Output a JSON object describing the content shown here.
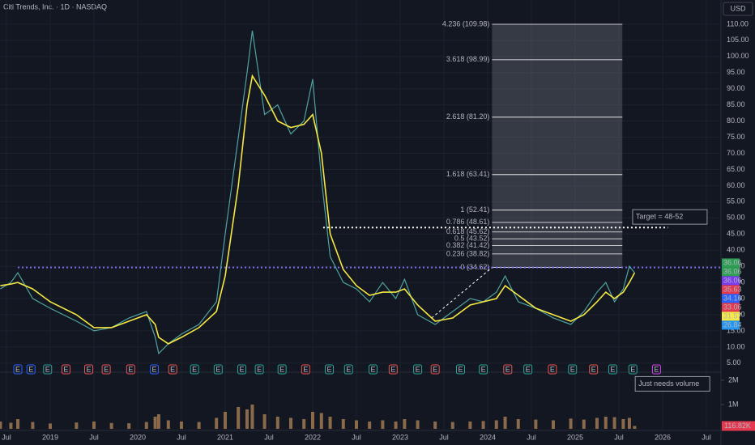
{
  "chart_data": {
    "type": "line",
    "title": "Citi Trends, Inc. · 1D · NASDAQ",
    "currency": "USD",
    "background": "#131722",
    "x": [
      2018.43,
      2018.55,
      2018.63,
      2018.8,
      2019.0,
      2019.3,
      2019.5,
      2019.7,
      2019.9,
      2020.1,
      2020.2,
      2020.24,
      2020.35,
      2020.5,
      2020.7,
      2020.9,
      2021.0,
      2021.15,
      2021.25,
      2021.31,
      2021.45,
      2021.6,
      2021.75,
      2021.9,
      2022.0,
      2022.1,
      2022.2,
      2022.35,
      2022.5,
      2022.65,
      2022.8,
      2022.95,
      2023.05,
      2023.2,
      2023.4,
      2023.6,
      2023.8,
      2023.95,
      2024.1,
      2024.2,
      2024.35,
      2024.55,
      2024.75,
      2024.95,
      2025.1,
      2025.25,
      2025.35,
      2025.45,
      2025.55,
      2025.62,
      2025.68
    ],
    "series": [
      {
        "color": "#4fa3a0",
        "values": [
          28,
          30,
          33,
          25,
          22,
          18,
          15,
          16,
          19,
          21,
          13,
          8,
          11,
          14,
          17,
          24,
          45,
          75,
          95,
          108,
          82,
          85,
          76,
          80,
          93,
          62,
          38,
          30,
          28,
          24,
          30,
          25,
          31,
          20,
          17,
          21,
          25,
          24,
          27,
          32,
          24,
          22,
          19,
          17,
          21,
          27,
          30,
          24,
          28,
          35,
          33
        ]
      },
      {
        "color": "#f5e942",
        "values": [
          29,
          29.5,
          30,
          28,
          24,
          20,
          16,
          16,
          18,
          20,
          17,
          13,
          11,
          13,
          16,
          21,
          32,
          60,
          85,
          94,
          88,
          80,
          78,
          79,
          82,
          70,
          45,
          34,
          29,
          26,
          27,
          27,
          28,
          23,
          18,
          19,
          23,
          24,
          25,
          29,
          26,
          22,
          20,
          18,
          20,
          24,
          27,
          25,
          27,
          30,
          33
        ]
      }
    ],
    "volume": {
      "color": "#8a6a4a",
      "values": [
        300000,
        250000,
        400000,
        280000,
        220000,
        260000,
        300000,
        240000,
        230000,
        280000,
        500000,
        600000,
        350000,
        300000,
        280000,
        450000,
        700000,
        900000,
        800000,
        1000000,
        600000,
        500000,
        450000,
        400000,
        700000,
        650000,
        500000,
        400000,
        350000,
        300000,
        350000,
        300000,
        400000,
        350000,
        300000,
        280000,
        300000,
        320000,
        350000,
        500000,
        400000,
        380000,
        350000,
        420000,
        380000,
        450000,
        500000,
        480000,
        400000,
        450000,
        116820
      ]
    },
    "volume_last_label": "116.82K",
    "volume_ylim": [
      0,
      2330000
    ],
    "volume_ticks": [
      {
        "value": 2000000,
        "label": "2M"
      },
      {
        "value": 1000000,
        "label": "1M"
      }
    ],
    "xlim": [
      2018.426,
      2026.667
    ],
    "xticks": [
      {
        "value": 2018.5,
        "label": "Jul"
      },
      {
        "value": 2019,
        "label": "2019"
      },
      {
        "value": 2019.5,
        "label": "Jul"
      },
      {
        "value": 2020,
        "label": "2020"
      },
      {
        "value": 2020.5,
        "label": "Jul"
      },
      {
        "value": 2021,
        "label": "2021"
      },
      {
        "value": 2021.5,
        "label": "Jul"
      },
      {
        "value": 2022,
        "label": "2022"
      },
      {
        "value": 2022.5,
        "label": "Jul"
      },
      {
        "value": 2023,
        "label": "2023"
      },
      {
        "value": 2023.5,
        "label": "Jul"
      },
      {
        "value": 2024,
        "label": "2024"
      },
      {
        "value": 2024.5,
        "label": "Jul"
      },
      {
        "value": 2025,
        "label": "2025"
      },
      {
        "value": 2025.5,
        "label": "Jul"
      },
      {
        "value": 2026,
        "label": "2026"
      },
      {
        "value": 2026.5,
        "label": "Jul"
      }
    ],
    "ylim": [
      2.2,
      117.5
    ],
    "yticks": [
      {
        "value": 5,
        "label": "5.00"
      },
      {
        "value": 10,
        "label": "10.00"
      },
      {
        "value": 15,
        "label": "15.00"
      },
      {
        "value": 20,
        "label": "20.00"
      },
      {
        "value": 25,
        "label": "25.00"
      },
      {
        "value": 30,
        "label": "30.00"
      },
      {
        "value": 35,
        "label": "35.00"
      },
      {
        "value": 40,
        "label": "40.00"
      },
      {
        "value": 45,
        "label": "45.00"
      },
      {
        "value": 50,
        "label": "50.00"
      },
      {
        "value": 55,
        "label": "55.00"
      },
      {
        "value": 60,
        "label": "60.00"
      },
      {
        "value": 65,
        "label": "65.00"
      },
      {
        "value": 70,
        "label": "70.00"
      },
      {
        "value": 75,
        "label": "75.00"
      },
      {
        "value": 80,
        "label": "80.00"
      },
      {
        "value": 85,
        "label": "85.00"
      },
      {
        "value": 90,
        "label": "90.00"
      },
      {
        "value": 95,
        "label": "95.00"
      },
      {
        "value": 100,
        "label": "100.00"
      },
      {
        "value": 105,
        "label": "105.00"
      },
      {
        "value": 110,
        "label": "110.00"
      }
    ],
    "grid": true,
    "fib": {
      "from": 2024.05,
      "to": 2025.54,
      "levels": [
        {
          "value": 109.98,
          "label": "4.236 (109.98)"
        },
        {
          "value": 98.99,
          "label": "3.618 (98.99)"
        },
        {
          "value": 81.2,
          "label": "2.618 (81.20)"
        },
        {
          "value": 63.41,
          "label": "1.618 (63.41)"
        },
        {
          "value": 52.41,
          "label": "1 (52.41)"
        },
        {
          "value": 48.61,
          "label": "0.786 (48.61)"
        },
        {
          "value": 45.62,
          "label": "0.618 (45.62)"
        },
        {
          "value": 43.52,
          "label": "0.5 (43.52)"
        },
        {
          "value": 41.42,
          "label": "0.382 (41.42)"
        },
        {
          "value": 38.82,
          "label": "0.236 (38.82)"
        },
        {
          "value": 34.62,
          "label": "0 (34.62)"
        }
      ]
    },
    "trend_line": {
      "x": [
        2023.36,
        2024.05
      ],
      "values": [
        19,
        34.62
      ]
    },
    "levels": [
      {
        "value": 47,
        "from": 2022.12,
        "to": 2026.06,
        "color": "#ffffff"
      },
      {
        "value": 34.62,
        "from": 2018.63,
        "to": 2026.667,
        "color": "#7b6cf0"
      }
    ],
    "annotations": [
      {
        "text": "Target = 48-52",
        "x": 2025.87,
        "value": 50.3
      },
      {
        "text": "Just needs volume",
        "x": 2025.9,
        "volume": 1850000
      }
    ],
    "price_tags": [
      {
        "value": 36.06,
        "color": "#2e9e55"
      },
      {
        "value": 36.06,
        "color": "#2e9e55"
      },
      {
        "value": 36.06,
        "color": "#7b3cf0"
      },
      {
        "value": 35.63,
        "color": "#e53950"
      },
      {
        "value": 34.16,
        "color": "#2962ff"
      },
      {
        "value": 33.06,
        "color": "#e53950"
      },
      {
        "value": 31.57,
        "color": "#f5e942"
      },
      {
        "value": 26.84,
        "color": "#2196f3"
      }
    ],
    "earnings_label": "E",
    "earnings": {
      "x": [
        2018.63,
        2018.78,
        2018.97,
        2019.18,
        2019.44,
        2019.64,
        2019.92,
        2020.19,
        2020.4,
        2020.65,
        2020.92,
        2021.19,
        2021.39,
        2021.65,
        2021.92,
        2022.19,
        2022.41,
        2022.69,
        2022.92,
        2023.2,
        2023.4,
        2023.69,
        2023.95,
        2024.23,
        2024.46,
        2024.74,
        2024.97,
        2025.21,
        2025.43,
        2025.66,
        2025.93
      ],
      "colors": [
        "#2962ff",
        "#2962ff",
        "#26a69a",
        "#ef5350",
        "#ef5350",
        "#ef5350",
        "#ef5350",
        "#2962ff",
        "#ef5350",
        "#26a69a",
        "#26a69a",
        "#26a69a",
        "#26a69a",
        "#26a69a",
        "#ef5350",
        "#26a69a",
        "#26a69a",
        "#26a69a",
        "#ef5350",
        "#26a69a",
        "#ef5350",
        "#26a69a",
        "#26a69a",
        "#ef5350",
        "#26a69a",
        "#ef5350",
        "#26a69a",
        "#ef5350",
        "#26a69a",
        "#26a69a",
        "#e040fb"
      ]
    }
  }
}
